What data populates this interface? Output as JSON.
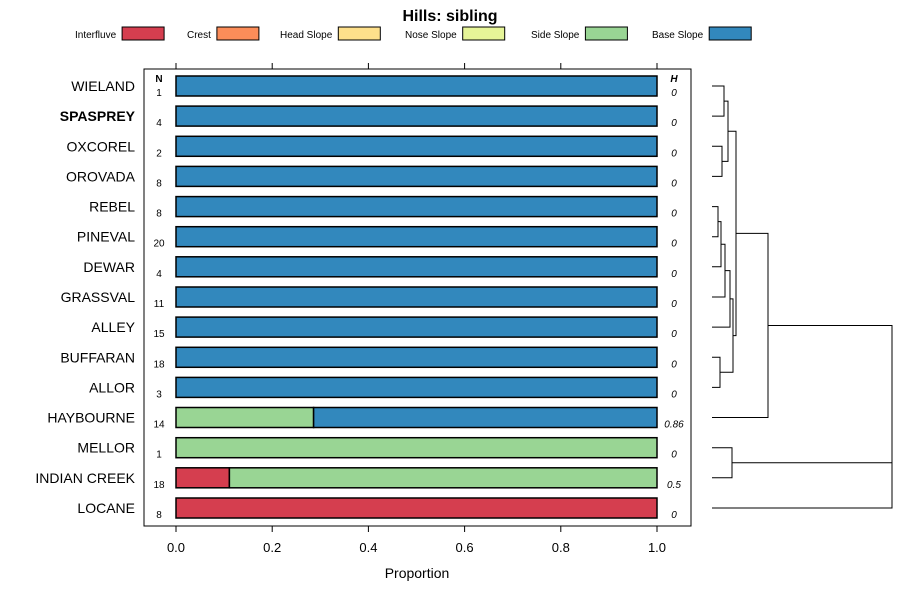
{
  "chart_data": {
    "type": "bar",
    "orientation": "horizontal",
    "stacked": true,
    "title": "Hills: sibling",
    "xlabel": "Proportion",
    "xlim": [
      0,
      1
    ],
    "x_ticks": [
      "0.0",
      "0.2",
      "0.4",
      "0.6",
      "0.8",
      "1.0"
    ],
    "n_header": "N",
    "h_header": "H",
    "legend_position": "top",
    "legend": [
      {
        "name": "Interfluve",
        "color": "#D53E4F"
      },
      {
        "name": "Crest",
        "color": "#FC8D59"
      },
      {
        "name": "Head Slope",
        "color": "#FEE08B"
      },
      {
        "name": "Nose Slope",
        "color": "#E6F598"
      },
      {
        "name": "Side Slope",
        "color": "#99D594"
      },
      {
        "name": "Base Slope",
        "color": "#3288BD"
      }
    ],
    "highlighted_row": "SPASPREY",
    "rows": [
      {
        "name": "WIELAND",
        "n": "1",
        "h": "0",
        "values": [
          0,
          0,
          0,
          0,
          0,
          1
        ]
      },
      {
        "name": "SPASPREY",
        "n": "4",
        "h": "0",
        "values": [
          0,
          0,
          0,
          0,
          0,
          1
        ]
      },
      {
        "name": "OXCOREL",
        "n": "2",
        "h": "0",
        "values": [
          0,
          0,
          0,
          0,
          0,
          1
        ]
      },
      {
        "name": "OROVADA",
        "n": "8",
        "h": "0",
        "values": [
          0,
          0,
          0,
          0,
          0,
          1
        ]
      },
      {
        "name": "REBEL",
        "n": "8",
        "h": "0",
        "values": [
          0,
          0,
          0,
          0,
          0,
          1
        ]
      },
      {
        "name": "PINEVAL",
        "n": "20",
        "h": "0",
        "values": [
          0,
          0,
          0,
          0,
          0,
          1
        ]
      },
      {
        "name": "DEWAR",
        "n": "4",
        "h": "0",
        "values": [
          0,
          0,
          0,
          0,
          0,
          1
        ]
      },
      {
        "name": "GRASSVAL",
        "n": "11",
        "h": "0",
        "values": [
          0,
          0,
          0,
          0,
          0,
          1
        ]
      },
      {
        "name": "ALLEY",
        "n": "15",
        "h": "0",
        "values": [
          0,
          0,
          0,
          0,
          0,
          1
        ]
      },
      {
        "name": "BUFFARAN",
        "n": "18",
        "h": "0",
        "values": [
          0,
          0,
          0,
          0,
          0,
          1
        ]
      },
      {
        "name": "ALLOR",
        "n": "3",
        "h": "0",
        "values": [
          0,
          0,
          0,
          0,
          0,
          1
        ]
      },
      {
        "name": "HAYBOURNE",
        "n": "14",
        "h": "0.86",
        "values": [
          0,
          0,
          0,
          0,
          0.286,
          0.714
        ]
      },
      {
        "name": "MELLOR",
        "n": "1",
        "h": "0",
        "values": [
          0,
          0,
          0,
          0,
          1,
          0
        ]
      },
      {
        "name": "INDIAN CREEK",
        "n": "18",
        "h": "0.5",
        "values": [
          0.111,
          0,
          0,
          0,
          0.889,
          0
        ]
      },
      {
        "name": "LOCANE",
        "n": "8",
        "h": "0",
        "values": [
          1,
          0,
          0,
          0,
          0,
          0
        ]
      }
    ],
    "dendrogram_tips": 15
  }
}
